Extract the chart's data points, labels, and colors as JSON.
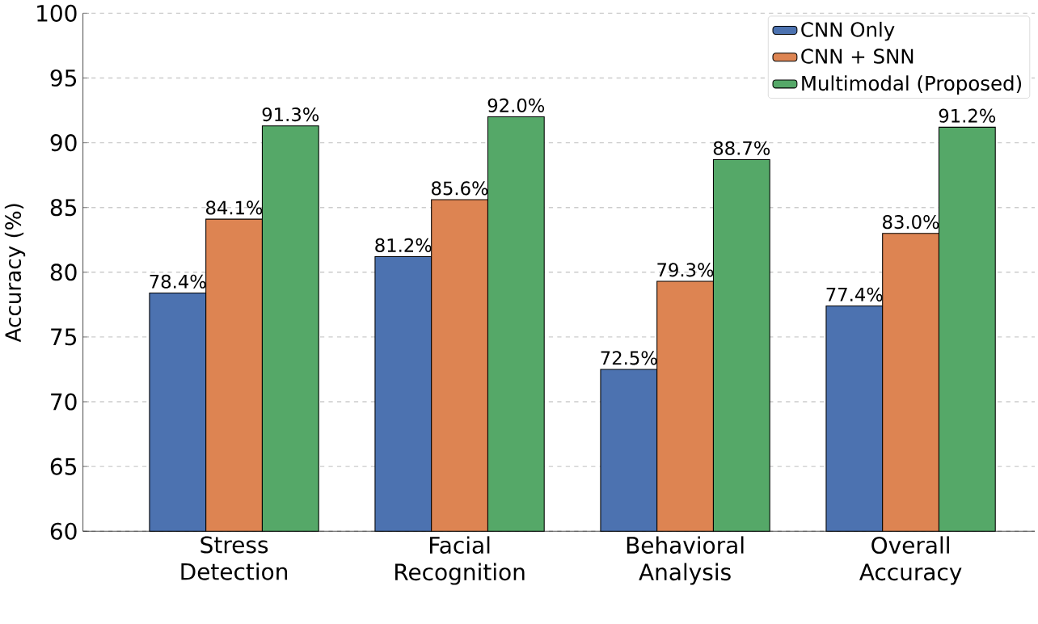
{
  "chart_data": {
    "type": "bar",
    "ylabel": "Accuracy (%)",
    "categories": [
      "Stress Detection",
      "Facial Recognition",
      "Behavioral Analysis",
      "Overall Accuracy"
    ],
    "series": [
      {
        "name": "CNN Only",
        "color": "#4c72b0",
        "values": [
          78.4,
          81.2,
          72.5,
          77.4
        ],
        "value_labels": [
          "78.4%",
          "81.2%",
          "72.5%",
          "77.4%"
        ]
      },
      {
        "name": "CNN + SNN",
        "color": "#dd8452",
        "values": [
          84.1,
          85.6,
          79.3,
          83.0
        ],
        "value_labels": [
          "84.1%",
          "85.6%",
          "79.3%",
          "83.0%"
        ]
      },
      {
        "name": "Multimodal (Proposed)",
        "color": "#55a868",
        "values": [
          91.3,
          92.0,
          88.7,
          91.2
        ],
        "value_labels": [
          "91.3%",
          "92.0%",
          "88.7%",
          "91.2%"
        ]
      }
    ],
    "ylim": [
      60,
      100
    ],
    "yticks": [
      60,
      65,
      70,
      75,
      80,
      85,
      90,
      95,
      100
    ],
    "grid": "y",
    "legend": "top right"
  }
}
